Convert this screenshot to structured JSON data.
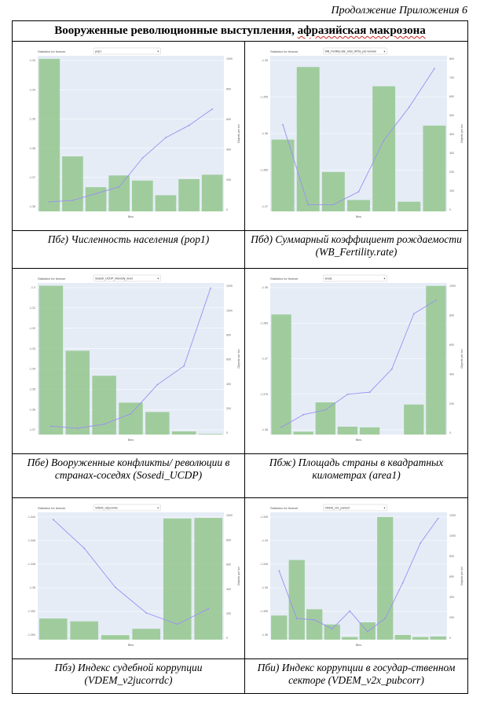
{
  "header": {
    "appendix_label": "Продолжение Приложения 6"
  },
  "table": {
    "title_pre": "Вооруженные революционные выступления, ",
    "title_mark": "афразийская макрозона"
  },
  "panels": [
    {
      "caption": "Пбг) Численность населения (pop1)",
      "stat_label": "Statistics for feature",
      "select_value": "pop1",
      "xlabel": "Bins",
      "y2label": "Objects per bin",
      "left_ticks": [
        "-1.33",
        "-1.34",
        "-1.35",
        "-1.36",
        "-1.37",
        "-1.38"
      ],
      "right_ticks": [
        "1000",
        "800",
        "600",
        "400",
        "200",
        "0"
      ]
    },
    {
      "caption": "Пбд) Суммарный коэффициент рождаемости (WB_Fertility.rate)",
      "stat_label": "Statistics for feature",
      "select_value": "WB_Fertility.rate_total_births_per.woman",
      "xlabel": "Bins",
      "y2label": "Objects per bin",
      "left_ticks": [
        "-1.35",
        "-1.355",
        "-1.36",
        "-1.365",
        "-1.37"
      ],
      "right_ticks": [
        "800",
        "700",
        "600",
        "500",
        "400",
        "300",
        "200",
        "100",
        "0"
      ]
    },
    {
      "caption": "Пбе) Вооруженные конфликты/ революции в странах-соседях (Sosedi_UCDP)",
      "stat_label": "Statistics for feature",
      "select_value": "Sosedi_UCDP_intensity_level",
      "xlabel": "Bins",
      "y2label": "Objects per bin",
      "left_ticks": [
        "-1.3",
        "-1.31",
        "-1.32",
        "-1.33",
        "-1.34",
        "-1.35",
        "-1.36",
        "-1.37"
      ],
      "right_ticks": [
        "1200",
        "1000",
        "800",
        "600",
        "400",
        "200",
        "0"
      ]
    },
    {
      "caption": "Пбж) Площадь страны в квадратных километрах (area1)",
      "stat_label": "Statistics for feature",
      "select_value": "area1",
      "xlabel": "Bins",
      "y2label": "Objects per bin",
      "left_ticks": [
        "-1.36",
        "-1.365",
        "-1.37",
        "-1.375",
        "-1.38"
      ],
      "right_ticks": [
        "1000",
        "800",
        "600",
        "400",
        "200",
        "0"
      ]
    },
    {
      "caption": "Пбз) Индекс судебной коррупции (VDEM_v2jucorrdc)",
      "stat_label": "Statistics for feature",
      "select_value": "VDEM_v2jucorrdc",
      "xlabel": "Bins",
      "y2label": "Objects per bin",
      "left_ticks": [
        "-1.344",
        "-1.346",
        "-1.348",
        "-1.35",
        "-1.352",
        "-1.354"
      ],
      "right_ticks": [
        "1000",
        "800",
        "600",
        "400",
        "200",
        "0"
      ]
    },
    {
      "caption": "Пби) Индекс коррупции в государ-ственном секторе (VDEM_v2x_pubcorr)",
      "stat_label": "Statistics for feature",
      "select_value": "VDEM_v2x_pubcorr",
      "xlabel": "Bins",
      "y2label": "Objects per bin",
      "left_ticks": [
        "-1.335",
        "-1.34",
        "-1.345",
        "-1.35",
        "-1.355",
        "-1.36"
      ],
      "right_ticks": [
        "1200",
        "1000",
        "800",
        "600",
        "400",
        "200",
        "0"
      ]
    }
  ],
  "chart_data": [
    {
      "type": "bar",
      "title": "",
      "series": [
        {
          "kind": "bar",
          "ylim_right": [
            0,
            1050
          ],
          "values": [
            1040,
            375,
            165,
            245,
            210,
            110,
            220,
            250
          ]
        },
        {
          "kind": "line",
          "ylim_left": [
            -1.382,
            -1.325
          ],
          "values": [
            -1.3785,
            -1.378,
            -1.3755,
            -1.373,
            -1.3625,
            -1.355,
            -1.3505,
            -1.3445
          ]
        }
      ]
    },
    {
      "type": "bar",
      "title": "",
      "series": [
        {
          "kind": "bar",
          "ylim_right": [
            0,
            880
          ],
          "values": [
            410,
            825,
            225,
            65,
            715,
            55,
            490
          ]
        },
        {
          "kind": "line",
          "ylim_left": [
            -1.3715,
            -1.3485
          ],
          "values": [
            -1.3587,
            -1.3705,
            -1.3705,
            -1.3686,
            -1.361,
            -1.3561,
            -1.3504
          ]
        }
      ]
    },
    {
      "type": "bar",
      "title": "",
      "series": [
        {
          "kind": "bar",
          "ylim_right": [
            0,
            1200
          ],
          "values": [
            1190,
            670,
            470,
            255,
            180,
            25,
            5
          ]
        },
        {
          "kind": "line",
          "ylim_left": [
            -1.371,
            -1.298
          ],
          "values": [
            -1.367,
            -1.368,
            -1.366,
            -1.361,
            -1.347,
            -1.338,
            -1.3005
          ]
        }
      ]
    },
    {
      "type": "bar",
      "title": "",
      "series": [
        {
          "kind": "bar",
          "ylim_right": [
            0,
            1050
          ],
          "values": [
            840,
            20,
            225,
            55,
            50,
            0,
            210,
            1040
          ]
        },
        {
          "kind": "line",
          "ylim_left": [
            -1.381,
            -1.352
          ],
          "values": [
            -1.3796,
            -1.3772,
            -1.3763,
            -1.3733,
            -1.3729,
            -1.3685,
            -1.3579,
            -1.3553
          ]
        }
      ]
    },
    {
      "type": "bar",
      "title": "",
      "series": [
        {
          "kind": "bar",
          "ylim_right": [
            0,
            1100
          ],
          "values": [
            185,
            160,
            40,
            95,
            1060,
            1065
          ]
        },
        {
          "kind": "line",
          "ylim_left": [
            -1.3552,
            -1.3428
          ],
          "values": [
            -1.3435,
            -1.3463,
            -1.3501,
            -1.3526,
            -1.3537,
            -1.3522
          ]
        }
      ]
    },
    {
      "type": "bar",
      "title": "",
      "series": [
        {
          "kind": "bar",
          "ylim_right": [
            0,
            1200
          ],
          "values": [
            230,
            760,
            290,
            145,
            25,
            165,
            1170,
            45,
            25,
            30
          ]
        },
        {
          "kind": "line",
          "ylim_left": [
            -1.3625,
            -1.3305
          ],
          "values": [
            -1.3452,
            -1.3572,
            -1.3575,
            -1.3598,
            -1.3553,
            -1.3605,
            -1.3572,
            -1.3482,
            -1.3382,
            -1.332
          ]
        }
      ]
    }
  ],
  "colors": {
    "plot_bg": "#e5ecf6",
    "bar": "#98c994",
    "line": "#9b8ff2",
    "grid": "#ffffff"
  }
}
